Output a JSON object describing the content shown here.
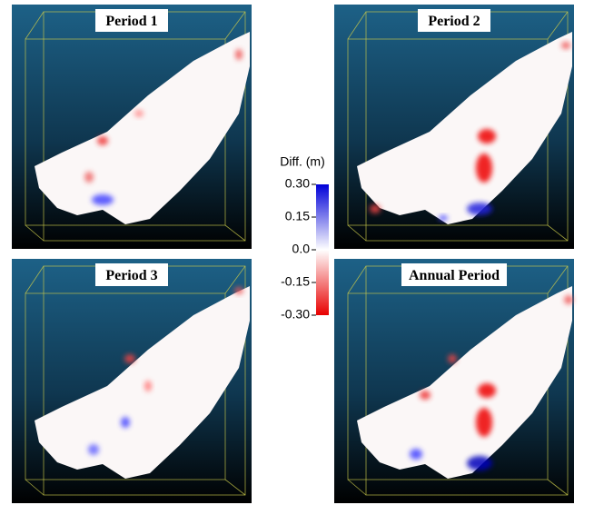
{
  "panels": [
    {
      "title": "Period 1"
    },
    {
      "title": "Period 2"
    },
    {
      "title": "Period 3"
    },
    {
      "title": "Annual Period"
    }
  ],
  "colorbar": {
    "title": "Diff. (m)",
    "ticks": [
      {
        "value": 0.3,
        "label": "0.30"
      },
      {
        "value": 0.15,
        "label": "0.15"
      },
      {
        "value": 0,
        "label": "0.0"
      },
      {
        "value": -0.15,
        "label": "-0.15"
      },
      {
        "value": -0.3,
        "label": "-0.30"
      }
    ]
  }
}
